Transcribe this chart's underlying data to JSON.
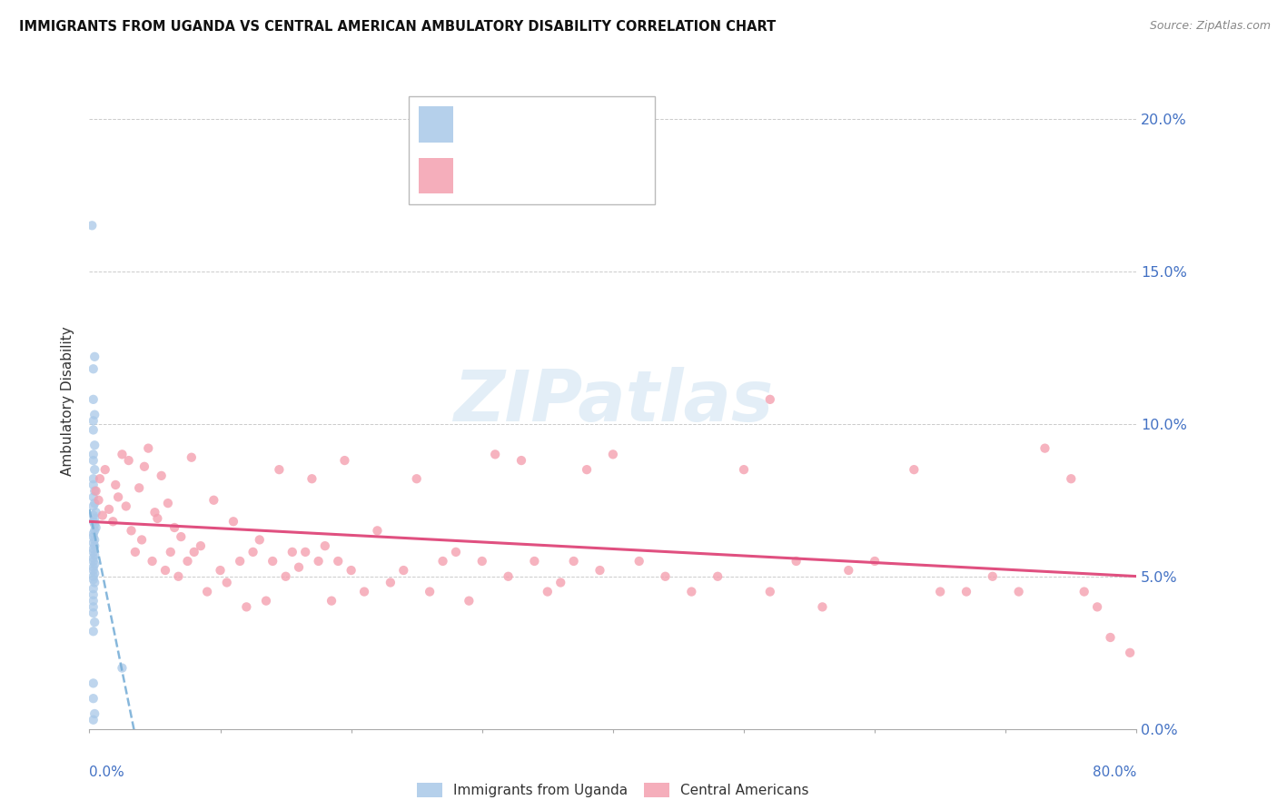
{
  "title": "IMMIGRANTS FROM UGANDA VS CENTRAL AMERICAN AMBULATORY DISABILITY CORRELATION CHART",
  "source": "Source: ZipAtlas.com",
  "ylabel": "Ambulatory Disability",
  "ytick_values": [
    0.0,
    5.0,
    10.0,
    15.0,
    20.0
  ],
  "xlim": [
    0.0,
    80.0
  ],
  "ylim": [
    0.0,
    21.5
  ],
  "legend_color1": "#a8c8e8",
  "legend_color2": "#f4a0b0",
  "uganda_color": "#a8c8e8",
  "central_color": "#f4a0b0",
  "uganda_line_color": "#7ab0d8",
  "central_line_color": "#e05080",
  "uganda_points": [
    [
      0.2,
      16.5
    ],
    [
      0.4,
      12.2
    ],
    [
      0.3,
      11.8
    ],
    [
      0.3,
      10.8
    ],
    [
      0.4,
      10.3
    ],
    [
      0.3,
      10.1
    ],
    [
      0.3,
      9.8
    ],
    [
      0.4,
      9.3
    ],
    [
      0.3,
      9.0
    ],
    [
      0.3,
      8.8
    ],
    [
      0.4,
      8.5
    ],
    [
      0.3,
      8.2
    ],
    [
      0.3,
      8.0
    ],
    [
      0.4,
      7.8
    ],
    [
      0.3,
      7.6
    ],
    [
      0.4,
      7.4
    ],
    [
      0.3,
      7.3
    ],
    [
      0.5,
      7.1
    ],
    [
      0.3,
      7.0
    ],
    [
      0.4,
      6.9
    ],
    [
      0.3,
      6.8
    ],
    [
      0.4,
      6.7
    ],
    [
      0.5,
      6.6
    ],
    [
      0.4,
      6.5
    ],
    [
      0.3,
      6.4
    ],
    [
      0.3,
      6.3
    ],
    [
      0.4,
      6.2
    ],
    [
      0.3,
      6.1
    ],
    [
      0.4,
      6.0
    ],
    [
      0.3,
      5.9
    ],
    [
      0.3,
      5.8
    ],
    [
      0.4,
      5.7
    ],
    [
      0.3,
      5.6
    ],
    [
      0.3,
      5.5
    ],
    [
      0.4,
      5.4
    ],
    [
      0.3,
      5.3
    ],
    [
      0.3,
      5.2
    ],
    [
      0.4,
      5.1
    ],
    [
      0.3,
      5.0
    ],
    [
      0.3,
      4.9
    ],
    [
      0.4,
      4.8
    ],
    [
      0.3,
      4.6
    ],
    [
      0.3,
      4.4
    ],
    [
      0.3,
      4.2
    ],
    [
      0.3,
      4.0
    ],
    [
      0.3,
      3.8
    ],
    [
      0.4,
      3.5
    ],
    [
      0.3,
      3.2
    ],
    [
      2.5,
      2.0
    ],
    [
      0.3,
      1.5
    ],
    [
      0.3,
      1.0
    ],
    [
      0.4,
      0.5
    ],
    [
      0.3,
      0.3
    ]
  ],
  "central_points": [
    [
      0.5,
      7.8
    ],
    [
      0.7,
      7.5
    ],
    [
      0.8,
      8.2
    ],
    [
      1.0,
      7.0
    ],
    [
      1.2,
      8.5
    ],
    [
      1.5,
      7.2
    ],
    [
      1.8,
      6.8
    ],
    [
      2.0,
      8.0
    ],
    [
      2.2,
      7.6
    ],
    [
      2.5,
      9.0
    ],
    [
      2.8,
      7.3
    ],
    [
      3.0,
      8.8
    ],
    [
      3.2,
      6.5
    ],
    [
      3.5,
      5.8
    ],
    [
      3.8,
      7.9
    ],
    [
      4.0,
      6.2
    ],
    [
      4.2,
      8.6
    ],
    [
      4.5,
      9.2
    ],
    [
      4.8,
      5.5
    ],
    [
      5.0,
      7.1
    ],
    [
      5.2,
      6.9
    ],
    [
      5.5,
      8.3
    ],
    [
      5.8,
      5.2
    ],
    [
      6.0,
      7.4
    ],
    [
      6.2,
      5.8
    ],
    [
      6.5,
      6.6
    ],
    [
      6.8,
      5.0
    ],
    [
      7.0,
      6.3
    ],
    [
      7.5,
      5.5
    ],
    [
      7.8,
      8.9
    ],
    [
      8.0,
      5.8
    ],
    [
      8.5,
      6.0
    ],
    [
      9.0,
      4.5
    ],
    [
      9.5,
      7.5
    ],
    [
      10.0,
      5.2
    ],
    [
      10.5,
      4.8
    ],
    [
      11.0,
      6.8
    ],
    [
      11.5,
      5.5
    ],
    [
      12.0,
      4.0
    ],
    [
      12.5,
      5.8
    ],
    [
      13.0,
      6.2
    ],
    [
      13.5,
      4.2
    ],
    [
      14.0,
      5.5
    ],
    [
      14.5,
      8.5
    ],
    [
      15.0,
      5.0
    ],
    [
      15.5,
      5.8
    ],
    [
      16.0,
      5.3
    ],
    [
      16.5,
      5.8
    ],
    [
      17.0,
      8.2
    ],
    [
      17.5,
      5.5
    ],
    [
      18.0,
      6.0
    ],
    [
      18.5,
      4.2
    ],
    [
      19.0,
      5.5
    ],
    [
      19.5,
      8.8
    ],
    [
      20.0,
      5.2
    ],
    [
      21.0,
      4.5
    ],
    [
      22.0,
      6.5
    ],
    [
      23.0,
      4.8
    ],
    [
      24.0,
      5.2
    ],
    [
      25.0,
      8.2
    ],
    [
      26.0,
      4.5
    ],
    [
      27.0,
      5.5
    ],
    [
      28.0,
      5.8
    ],
    [
      29.0,
      4.2
    ],
    [
      30.0,
      5.5
    ],
    [
      31.0,
      9.0
    ],
    [
      32.0,
      5.0
    ],
    [
      33.0,
      8.8
    ],
    [
      34.0,
      5.5
    ],
    [
      35.0,
      4.5
    ],
    [
      36.0,
      4.8
    ],
    [
      37.0,
      5.5
    ],
    [
      38.0,
      8.5
    ],
    [
      39.0,
      5.2
    ],
    [
      40.0,
      9.0
    ],
    [
      42.0,
      5.5
    ],
    [
      44.0,
      5.0
    ],
    [
      46.0,
      4.5
    ],
    [
      48.0,
      5.0
    ],
    [
      50.0,
      8.5
    ],
    [
      52.0,
      4.5
    ],
    [
      54.0,
      5.5
    ],
    [
      56.0,
      4.0
    ],
    [
      58.0,
      5.2
    ],
    [
      52.0,
      10.8
    ],
    [
      60.0,
      5.5
    ],
    [
      63.0,
      8.5
    ],
    [
      65.0,
      4.5
    ],
    [
      67.0,
      4.5
    ],
    [
      69.0,
      5.0
    ],
    [
      71.0,
      4.5
    ],
    [
      73.0,
      9.2
    ],
    [
      75.0,
      8.2
    ],
    [
      76.0,
      4.5
    ],
    [
      77.0,
      4.0
    ],
    [
      78.0,
      3.0
    ],
    [
      79.5,
      2.5
    ]
  ]
}
